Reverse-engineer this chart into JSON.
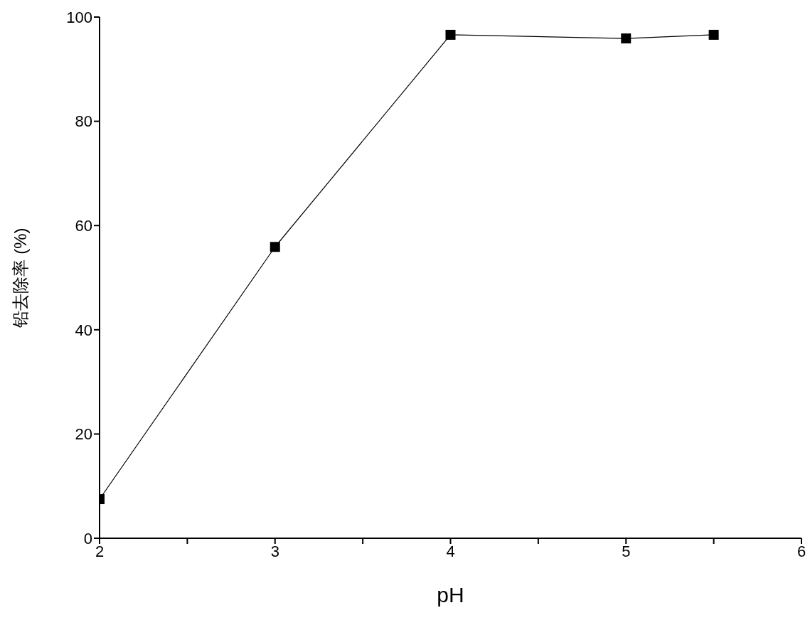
{
  "chart_data": {
    "type": "line",
    "xlabel": "pH",
    "ylabel": "铅去除率 (%)",
    "x": [
      2,
      3,
      4,
      5,
      5.5
    ],
    "series": [
      {
        "color": "#000000",
        "values": [
          7.5,
          55.9,
          96.6,
          95.9,
          96.6
        ]
      }
    ],
    "xlim": [
      2,
      6
    ],
    "xticks": [
      2,
      {
        "value": 2.5,
        "label": null
      },
      3,
      {
        "value": 3.5,
        "label": null
      },
      4,
      {
        "value": 4.5,
        "label": null
      },
      5,
      {
        "value": 5.5,
        "label": null
      },
      6
    ],
    "ylim": [
      0,
      100
    ],
    "yticks": [
      0,
      20,
      40,
      60,
      80,
      100
    ],
    "grid": false,
    "marker": "square",
    "line_style": "solid"
  }
}
